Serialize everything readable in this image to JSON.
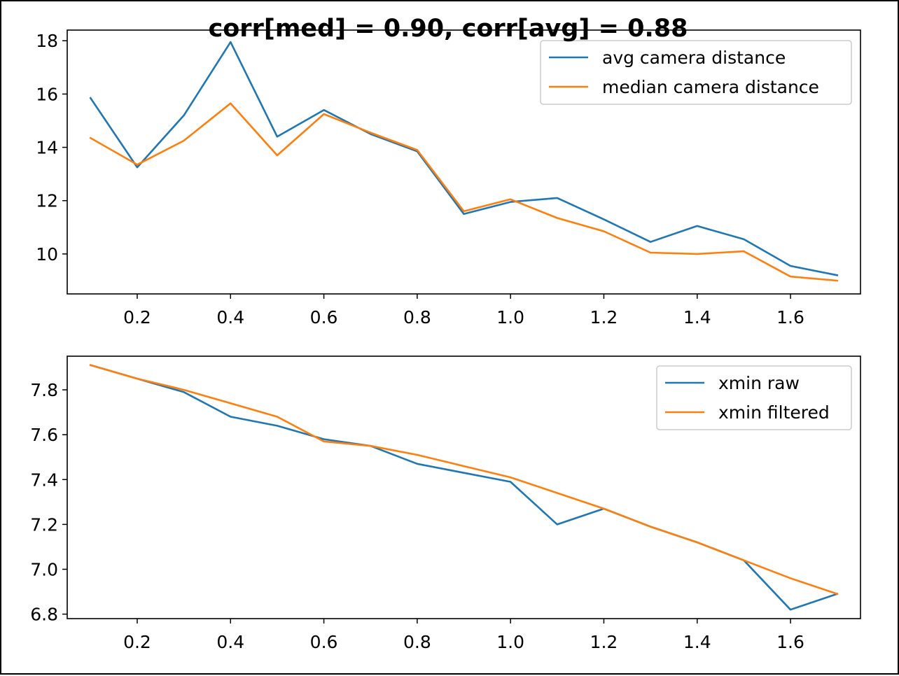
{
  "figure": {
    "title": "corr[med] = 0.90, corr[avg] = 0.88"
  },
  "chart_data": [
    {
      "type": "line",
      "title": "",
      "xlabel": "",
      "ylabel": "",
      "xlim": [
        0.05,
        1.75
      ],
      "ylim": [
        8.5,
        18.4
      ],
      "xticks": [
        0.2,
        0.4,
        0.6,
        0.8,
        1.0,
        1.2,
        1.4,
        1.6
      ],
      "xtick_labels": [
        "0.2",
        "0.4",
        "0.6",
        "0.8",
        "1.0",
        "1.2",
        "1.4",
        "1.6"
      ],
      "yticks": [
        10,
        12,
        14,
        16,
        18
      ],
      "ytick_labels": [
        "10",
        "12",
        "14",
        "16",
        "18"
      ],
      "grid": false,
      "legend": "top-right",
      "x": [
        0.1,
        0.2,
        0.3,
        0.4,
        0.5,
        0.6,
        0.7,
        0.8,
        0.9,
        1.0,
        1.1,
        1.2,
        1.3,
        1.4,
        1.5,
        1.6,
        1.7
      ],
      "series": [
        {
          "name": "avg camera distance",
          "color": "#1f77b4",
          "values": [
            15.85,
            13.25,
            15.2,
            17.95,
            14.4,
            15.4,
            14.5,
            13.85,
            11.5,
            11.95,
            12.1,
            11.3,
            10.45,
            11.05,
            10.55,
            9.55,
            9.2
          ]
        },
        {
          "name": "median camera distance",
          "color": "#ff7f0e",
          "values": [
            14.35,
            13.35,
            14.25,
            15.65,
            13.7,
            15.25,
            14.55,
            13.9,
            11.6,
            12.05,
            11.35,
            10.85,
            10.05,
            10.0,
            10.1,
            9.15,
            9.0
          ]
        }
      ]
    },
    {
      "type": "line",
      "title": "",
      "xlabel": "",
      "ylabel": "",
      "xlim": [
        0.05,
        1.75
      ],
      "ylim": [
        6.78,
        7.95
      ],
      "xticks": [
        0.2,
        0.4,
        0.6,
        0.8,
        1.0,
        1.2,
        1.4,
        1.6
      ],
      "xtick_labels": [
        "0.2",
        "0.4",
        "0.6",
        "0.8",
        "1.0",
        "1.2",
        "1.4",
        "1.6"
      ],
      "yticks": [
        6.8,
        7.0,
        7.2,
        7.4,
        7.6,
        7.8
      ],
      "ytick_labels": [
        "6.8",
        "7.0",
        "7.2",
        "7.4",
        "7.6",
        "7.8"
      ],
      "grid": false,
      "legend": "top-right",
      "x": [
        0.1,
        0.2,
        0.3,
        0.4,
        0.5,
        0.6,
        0.7,
        0.8,
        0.9,
        1.0,
        1.1,
        1.2,
        1.3,
        1.4,
        1.5,
        1.6,
        1.7
      ],
      "series": [
        {
          "name": "xmin raw",
          "color": "#1f77b4",
          "values": [
            7.91,
            7.85,
            7.79,
            7.68,
            7.64,
            7.58,
            7.55,
            7.47,
            7.43,
            7.39,
            7.2,
            7.27,
            7.19,
            7.12,
            7.04,
            6.82,
            6.89
          ]
        },
        {
          "name": "xmin filtered",
          "color": "#ff7f0e",
          "values": [
            7.91,
            7.85,
            7.8,
            7.74,
            7.68,
            7.57,
            7.55,
            7.51,
            7.46,
            7.41,
            7.34,
            7.27,
            7.19,
            7.12,
            7.04,
            6.96,
            6.89
          ]
        }
      ]
    }
  ]
}
